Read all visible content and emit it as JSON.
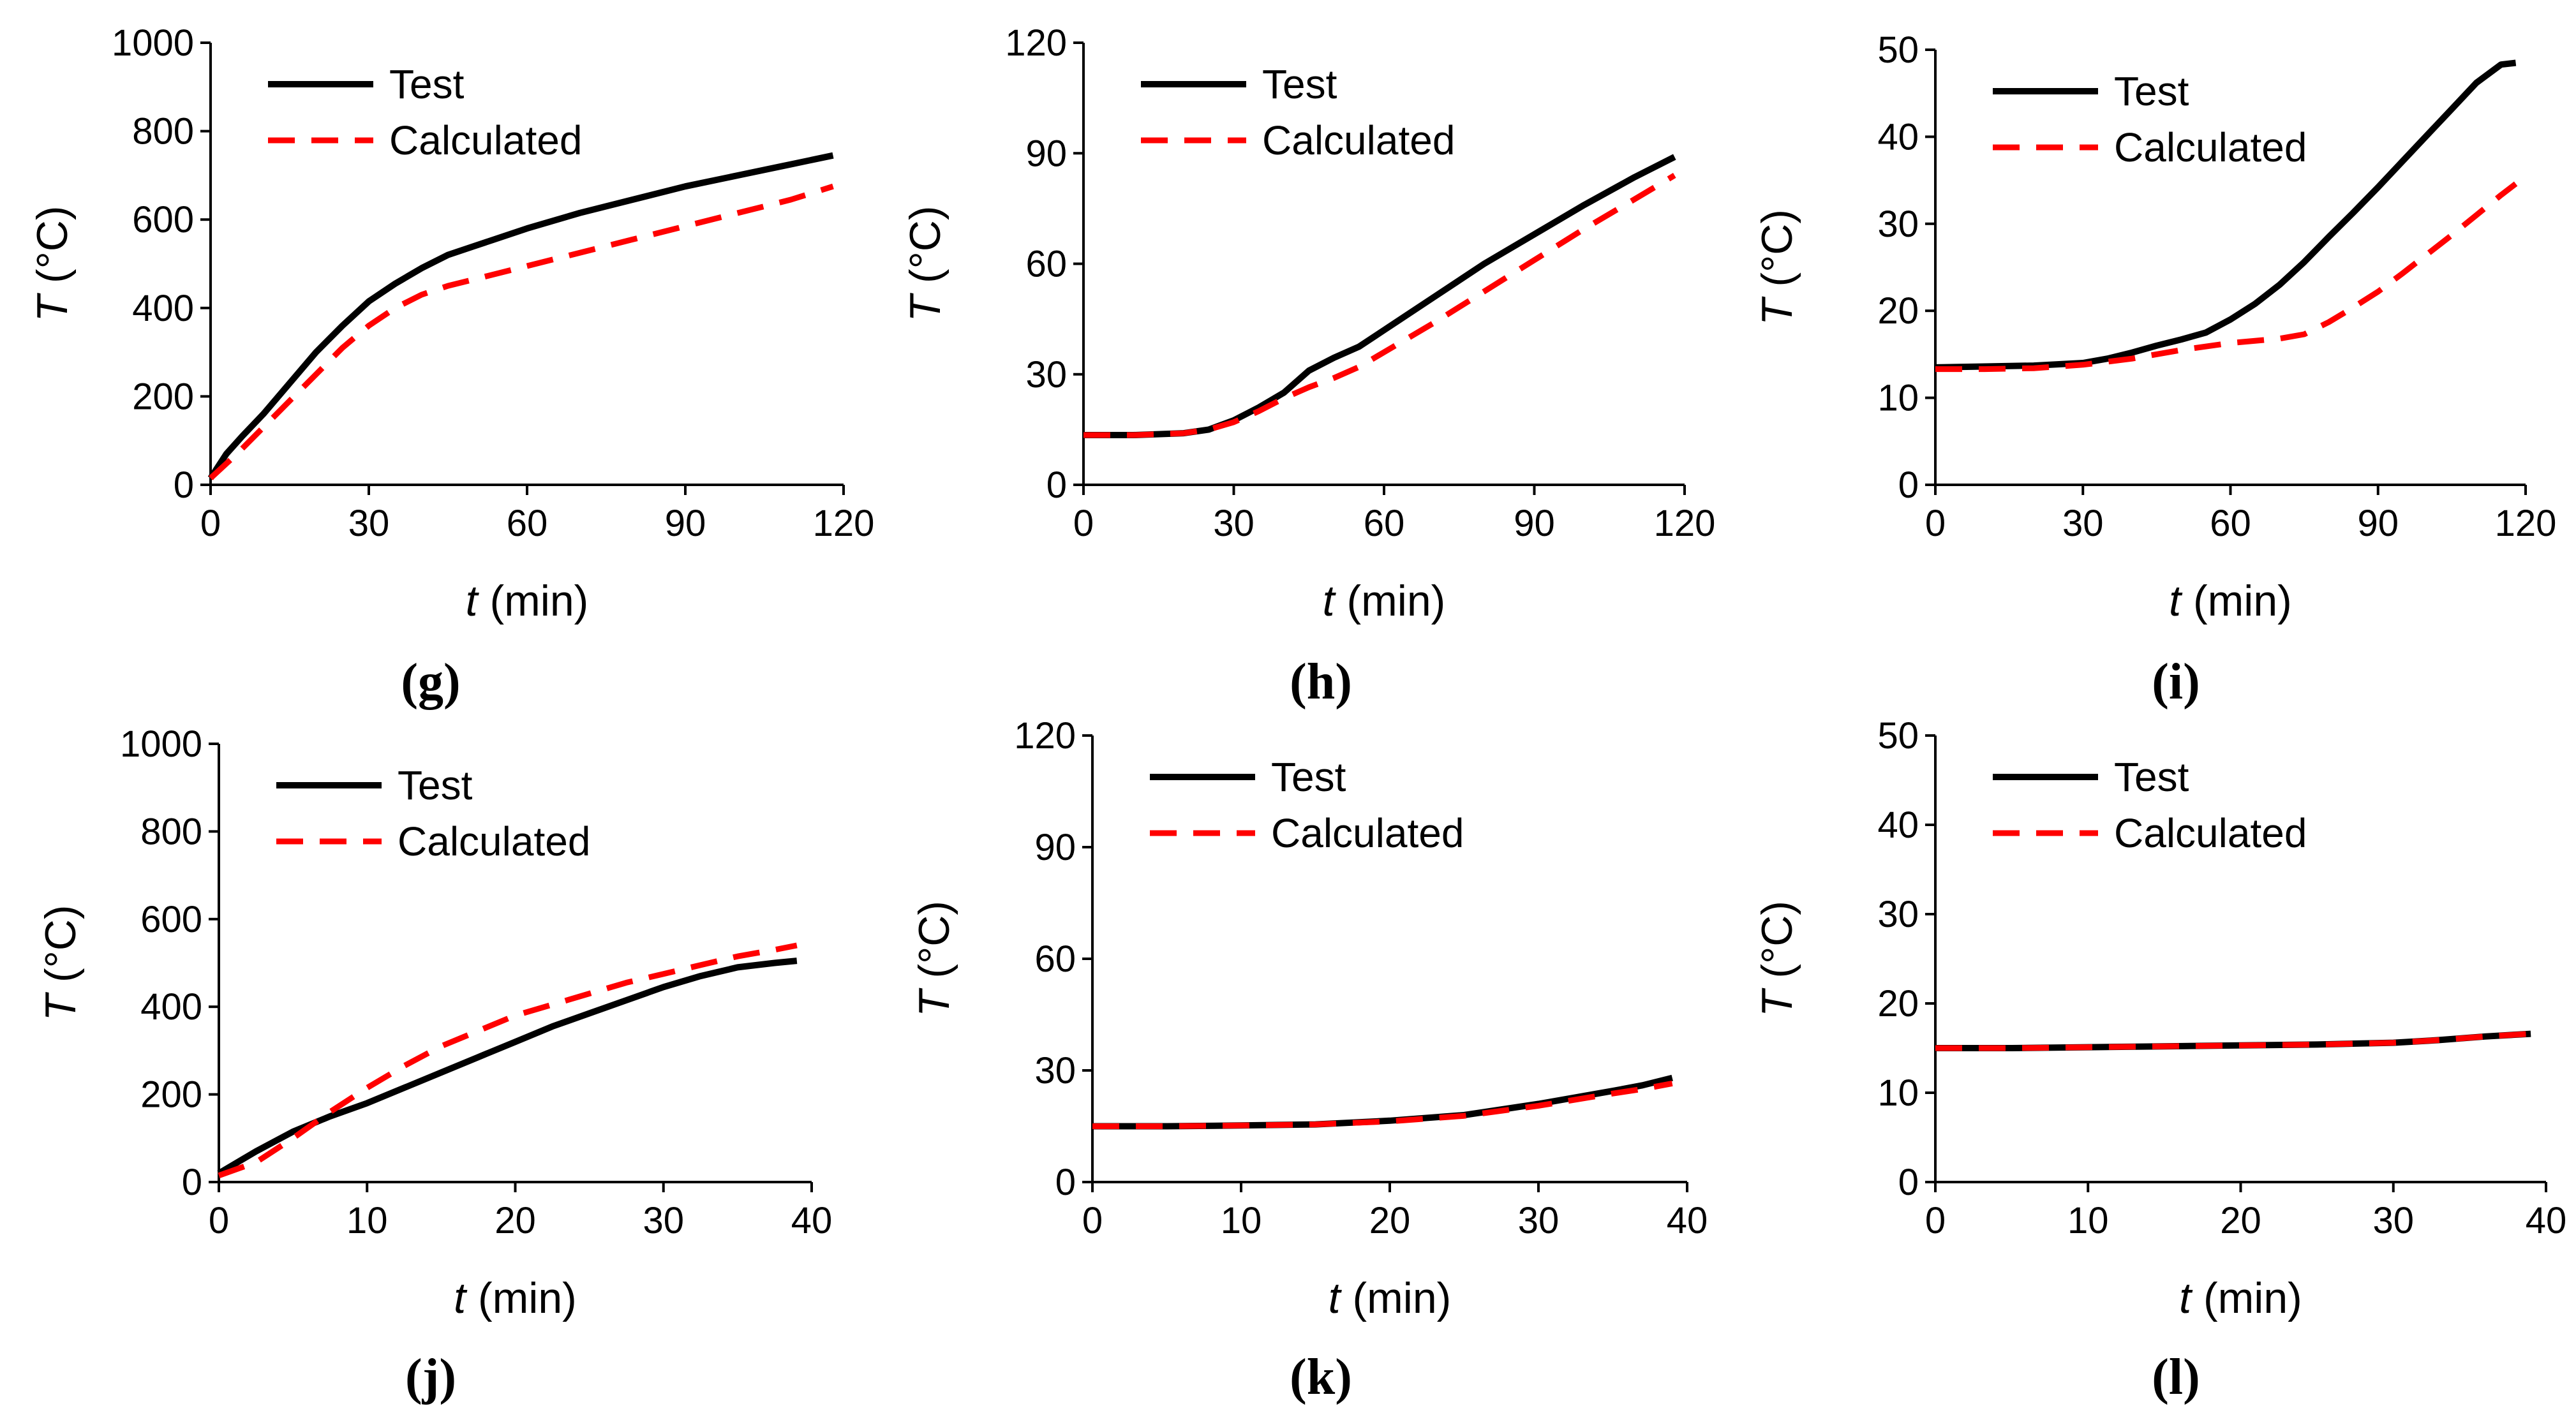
{
  "figure": {
    "series_names": [
      "Test",
      "Calculated"
    ],
    "colors": {
      "test": "#000000",
      "calculated": "#ff0000"
    }
  },
  "chart_data": [
    {
      "panel": "(g)",
      "type": "line",
      "xlabel_var": "t",
      "xlabel_unit": " (min)",
      "ylabel_var": "T",
      "ylabel_unit": " (°C)",
      "xlim": [
        0,
        120
      ],
      "ylim": [
        0,
        1000
      ],
      "xticks": [
        0,
        30,
        60,
        90,
        120
      ],
      "yticks": [
        0,
        200,
        400,
        600,
        800,
        1000
      ],
      "legend": [
        "Test",
        "Calculated"
      ],
      "legend_position": "top-left",
      "series": [
        {
          "name": "Test",
          "style": "solid",
          "x": [
            0,
            3,
            6,
            10,
            15,
            20,
            25,
            30,
            35,
            40,
            45,
            50,
            60,
            70,
            80,
            90,
            100,
            110,
            118
          ],
          "y": [
            15,
            70,
            110,
            160,
            230,
            300,
            360,
            415,
            455,
            490,
            520,
            540,
            580,
            615,
            645,
            675,
            700,
            725,
            745
          ]
        },
        {
          "name": "Calculated",
          "style": "dashed",
          "x": [
            0,
            5,
            10,
            15,
            20,
            25,
            30,
            35,
            40,
            45,
            50,
            60,
            70,
            80,
            90,
            100,
            110,
            118
          ],
          "y": [
            15,
            70,
            130,
            190,
            250,
            310,
            360,
            400,
            430,
            450,
            465,
            495,
            525,
            555,
            585,
            615,
            645,
            675
          ]
        }
      ]
    },
    {
      "panel": "(h)",
      "type": "line",
      "xlabel_var": "t",
      "xlabel_unit": " (min)",
      "ylabel_var": "T",
      "ylabel_unit": " (°C)",
      "xlim": [
        0,
        120
      ],
      "ylim": [
        0,
        120
      ],
      "xticks": [
        0,
        30,
        60,
        90,
        120
      ],
      "yticks": [
        0,
        30,
        60,
        90,
        120
      ],
      "legend": [
        "Test",
        "Calculated"
      ],
      "legend_position": "top-left",
      "series": [
        {
          "name": "Test",
          "style": "solid",
          "x": [
            0,
            10,
            20,
            25,
            30,
            35,
            40,
            45,
            50,
            55,
            60,
            70,
            80,
            90,
            100,
            110,
            118
          ],
          "y": [
            13.5,
            13.5,
            14,
            15,
            17.5,
            21,
            25,
            31,
            34.5,
            37.5,
            42,
            51,
            60,
            68,
            76,
            83.5,
            89
          ]
        },
        {
          "name": "Calculated",
          "style": "dashed",
          "x": [
            0,
            10,
            20,
            25,
            30,
            35,
            40,
            45,
            50,
            55,
            60,
            70,
            80,
            90,
            100,
            110,
            118
          ],
          "y": [
            13.5,
            13.5,
            14,
            15,
            17,
            20,
            23.5,
            26.5,
            29,
            32,
            36,
            44,
            52.5,
            61,
            69.5,
            77.5,
            84
          ]
        }
      ]
    },
    {
      "panel": "(i)",
      "type": "line",
      "xlabel_var": "t",
      "xlabel_unit": " (min)",
      "ylabel_var": "T",
      "ylabel_unit": " (°C)",
      "xlim": [
        0,
        120
      ],
      "ylim": [
        0,
        50
      ],
      "xticks": [
        0,
        30,
        60,
        90,
        120
      ],
      "yticks": [
        0,
        10,
        20,
        30,
        40,
        50
      ],
      "legend": [
        "Test",
        "Calculated"
      ],
      "legend_position": "top-left",
      "series": [
        {
          "name": "Test",
          "style": "solid",
          "x": [
            0,
            10,
            20,
            30,
            35,
            40,
            45,
            50,
            55,
            60,
            65,
            70,
            75,
            80,
            85,
            90,
            95,
            100,
            105,
            110,
            115,
            118
          ],
          "y": [
            13.5,
            13.6,
            13.7,
            14,
            14.5,
            15.2,
            16,
            16.7,
            17.5,
            19,
            20.8,
            23,
            25.6,
            28.5,
            31.3,
            34.2,
            37.2,
            40.2,
            43.2,
            46.2,
            48.3,
            48.5
          ]
        },
        {
          "name": "Calculated",
          "style": "dashed",
          "x": [
            0,
            10,
            20,
            30,
            40,
            50,
            60,
            70,
            75,
            80,
            85,
            90,
            95,
            100,
            105,
            110,
            115,
            118
          ],
          "y": [
            13.3,
            13.3,
            13.4,
            13.8,
            14.5,
            15.5,
            16.3,
            16.8,
            17.3,
            18.7,
            20.4,
            22.2,
            24.3,
            26.5,
            28.7,
            31,
            33.3,
            34.6
          ]
        }
      ]
    },
    {
      "panel": "(j)",
      "type": "line",
      "xlabel_var": "t",
      "xlabel_unit": " (min)",
      "ylabel_var": "T",
      "ylabel_unit": " (°C)",
      "xlim": [
        0,
        40
      ],
      "ylim": [
        0,
        1000
      ],
      "xticks": [
        0,
        10,
        20,
        30,
        40
      ],
      "yticks": [
        0,
        200,
        400,
        600,
        800,
        1000
      ],
      "legend": [
        "Test",
        "Calculated"
      ],
      "legend_position": "top-left",
      "series": [
        {
          "name": "Test",
          "style": "solid",
          "x": [
            0,
            2.5,
            5,
            7.5,
            10,
            12.5,
            15,
            17.5,
            20,
            22.5,
            25,
            27.5,
            30,
            32.5,
            35,
            37.5,
            39
          ],
          "y": [
            20,
            70,
            115,
            150,
            180,
            215,
            250,
            285,
            320,
            355,
            385,
            415,
            445,
            470,
            490,
            500,
            505
          ]
        },
        {
          "name": "Calculated",
          "style": "dashed",
          "x": [
            0,
            2.5,
            5,
            7.5,
            10,
            12.5,
            15,
            17.5,
            20,
            22.5,
            25,
            27.5,
            30,
            32.5,
            35,
            37.5,
            39
          ],
          "y": [
            15,
            45,
            100,
            160,
            215,
            265,
            310,
            345,
            380,
            405,
            430,
            455,
            475,
            495,
            515,
            530,
            540
          ]
        }
      ]
    },
    {
      "panel": "(k)",
      "type": "line",
      "xlabel_var": "t",
      "xlabel_unit": " (min)",
      "ylabel_var": "T",
      "ylabel_unit": " (°C)",
      "xlim": [
        0,
        40
      ],
      "ylim": [
        0,
        120
      ],
      "xticks": [
        0,
        10,
        20,
        30,
        40
      ],
      "yticks": [
        0,
        30,
        60,
        90,
        120
      ],
      "legend": [
        "Test",
        "Calculated"
      ],
      "legend_position": "top-left",
      "series": [
        {
          "name": "Test",
          "style": "solid",
          "x": [
            0,
            5,
            10,
            15,
            20,
            25,
            30,
            35,
            37,
            39
          ],
          "y": [
            15,
            15,
            15.2,
            15.5,
            16.5,
            18,
            21,
            24.5,
            26,
            28
          ]
        },
        {
          "name": "Calculated",
          "style": "dashed",
          "x": [
            0,
            5,
            10,
            15,
            20,
            25,
            30,
            35,
            37,
            39
          ],
          "y": [
            15,
            15,
            15.2,
            15.5,
            16.3,
            17.8,
            20.5,
            23.8,
            25,
            26.5
          ]
        }
      ]
    },
    {
      "panel": "(l)",
      "type": "line",
      "xlabel_var": "t",
      "xlabel_unit": " (min)",
      "ylabel_var": "T",
      "ylabel_unit": " (°C)",
      "xlim": [
        0,
        40
      ],
      "ylim": [
        0,
        50
      ],
      "xticks": [
        0,
        10,
        20,
        30,
        40
      ],
      "yticks": [
        0,
        10,
        20,
        30,
        40,
        50
      ],
      "legend": [
        "Test",
        "Calculated"
      ],
      "legend_position": "top-left",
      "series": [
        {
          "name": "Test",
          "style": "solid",
          "x": [
            0,
            5,
            10,
            15,
            20,
            25,
            30,
            33,
            36,
            39
          ],
          "y": [
            15,
            15,
            15.1,
            15.2,
            15.3,
            15.4,
            15.6,
            15.9,
            16.3,
            16.6
          ]
        },
        {
          "name": "Calculated",
          "style": "dashed",
          "x": [
            0,
            5,
            10,
            15,
            20,
            25,
            30,
            33,
            36,
            39
          ],
          "y": [
            15,
            15,
            15.1,
            15.2,
            15.3,
            15.4,
            15.6,
            15.9,
            16.3,
            16.6
          ]
        }
      ]
    }
  ]
}
